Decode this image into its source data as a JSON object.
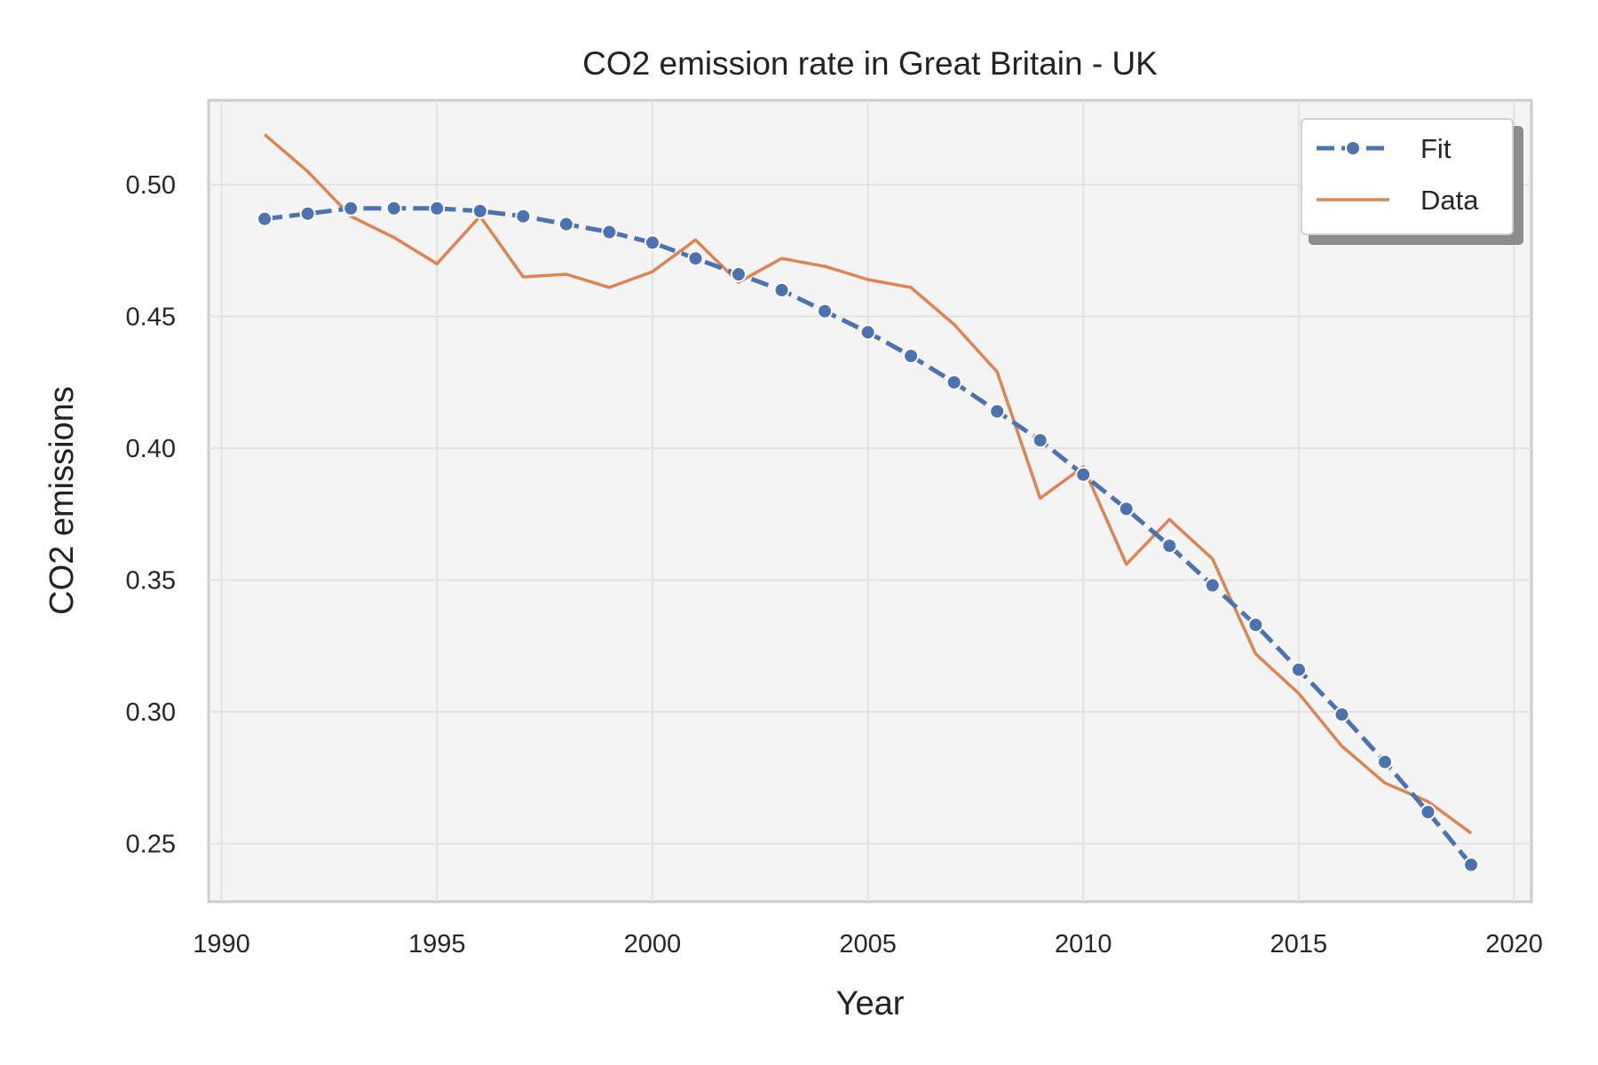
{
  "chart_data": {
    "type": "line",
    "title": "CO2 emission rate in Great Britain - UK",
    "xlabel": "Year",
    "ylabel": "CO2 emissions",
    "xlim": [
      1989.7,
      2020.4
    ],
    "ylim": [
      0.228,
      0.532
    ],
    "xticks": [
      1990,
      1995,
      2000,
      2005,
      2010,
      2015,
      2020
    ],
    "yticks": [
      0.25,
      0.3,
      0.35,
      0.4,
      0.45,
      0.5
    ],
    "ytick_labels": [
      "0.25",
      "0.30",
      "0.35",
      "0.40",
      "0.45",
      "0.50"
    ],
    "grid": true,
    "legend_position": "top-right",
    "x": [
      1991,
      1992,
      1993,
      1994,
      1995,
      1996,
      1997,
      1998,
      1999,
      2000,
      2001,
      2002,
      2003,
      2004,
      2005,
      2006,
      2007,
      2008,
      2009,
      2010,
      2011,
      2012,
      2013,
      2014,
      2015,
      2016,
      2017,
      2018,
      2019
    ],
    "series": [
      {
        "name": "Fit",
        "color": "#4c72b0",
        "style": "dashed-with-markers",
        "values": [
          0.487,
          0.489,
          0.491,
          0.491,
          0.491,
          0.49,
          0.488,
          0.485,
          0.482,
          0.478,
          0.472,
          0.466,
          0.46,
          0.452,
          0.444,
          0.435,
          0.425,
          0.414,
          0.403,
          0.39,
          0.377,
          0.363,
          0.348,
          0.333,
          0.316,
          0.299,
          0.281,
          0.262,
          0.242
        ]
      },
      {
        "name": "Data",
        "color": "#dd8452",
        "style": "solid",
        "values": [
          0.519,
          0.505,
          0.488,
          0.48,
          0.47,
          0.488,
          0.465,
          0.466,
          0.461,
          0.467,
          0.479,
          0.463,
          0.472,
          0.469,
          0.464,
          0.461,
          0.447,
          0.429,
          0.381,
          0.393,
          0.356,
          0.373,
          0.358,
          0.322,
          0.307,
          0.287,
          0.273,
          0.266,
          0.254
        ]
      }
    ]
  }
}
